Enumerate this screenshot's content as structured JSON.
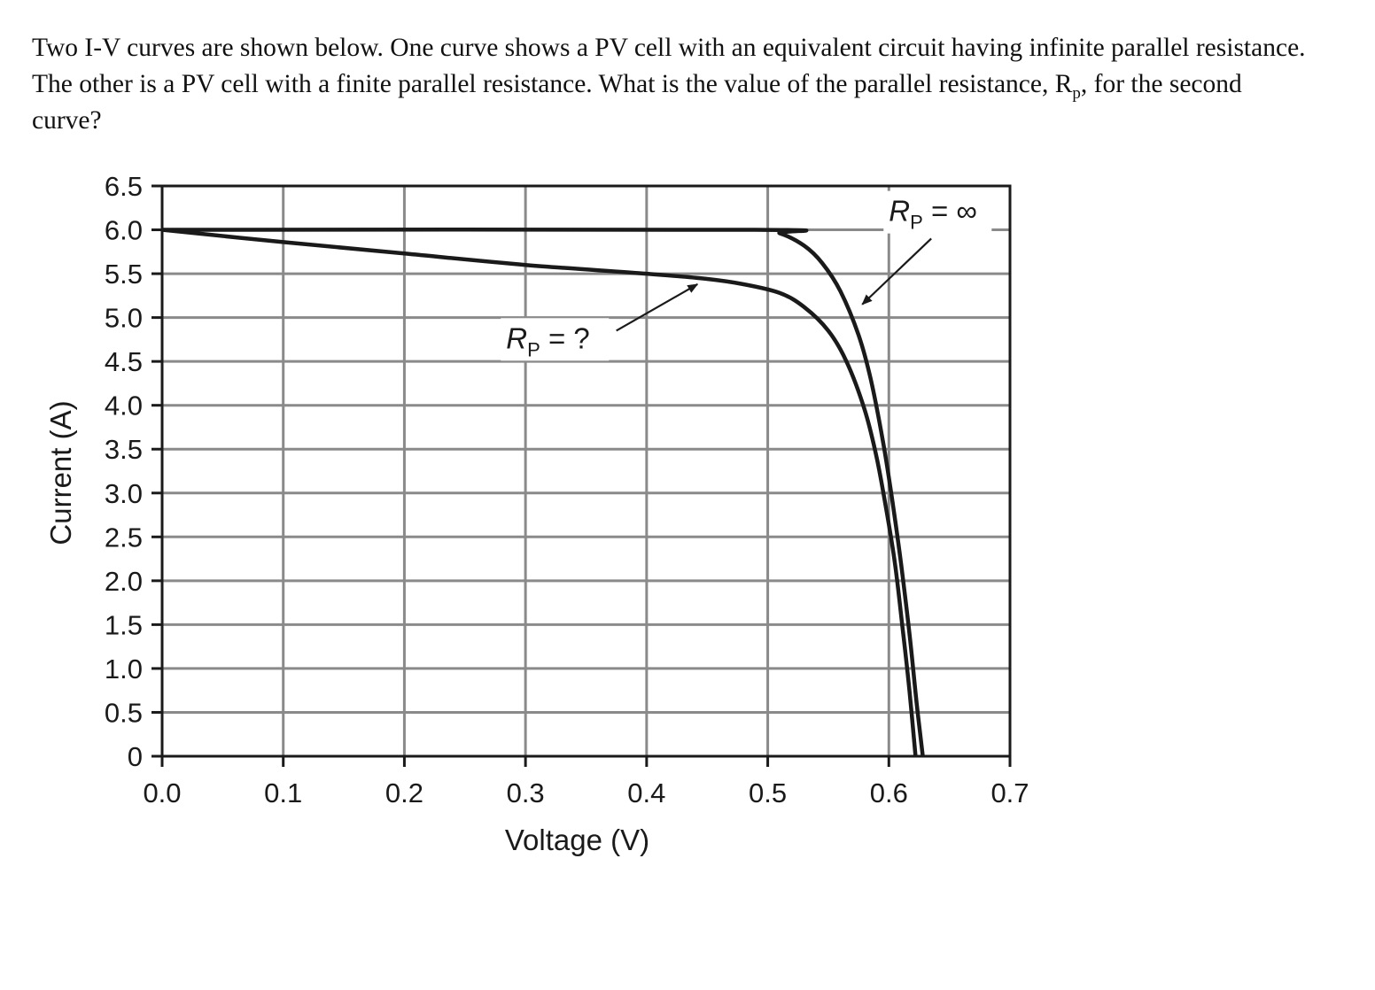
{
  "question": {
    "line_main": "Two I-V curves are shown below. One curve shows a PV cell with an equivalent circuit having infinite parallel resistance. The other is a PV cell with a finite parallel resistance. What is the value of the parallel resistance, R",
    "subscript": "p",
    "line_end": ", for the second curve?"
  },
  "chart_data": {
    "type": "line",
    "xlabel": "Voltage (V)",
    "ylabel": "Current (A)",
    "xlim": [
      0,
      0.7
    ],
    "ylim": [
      0,
      6.5
    ],
    "x_ticks": [
      "0.0",
      "0.1",
      "0.2",
      "0.3",
      "0.4",
      "0.5",
      "0.6",
      "0.7"
    ],
    "y_ticks": [
      "0",
      "0.5",
      "1.0",
      "1.5",
      "2.0",
      "2.5",
      "3.0",
      "3.5",
      "4.0",
      "4.5",
      "5.0",
      "5.5",
      "6.0",
      "6.5"
    ],
    "grid": true,
    "series": [
      {
        "name": "Rp = ∞",
        "points": [
          [
            0,
            6.0
          ],
          [
            0.49,
            6.0
          ],
          [
            0.51,
            5.96
          ],
          [
            0.53,
            5.82
          ],
          [
            0.545,
            5.62
          ],
          [
            0.56,
            5.3
          ],
          [
            0.575,
            4.8
          ],
          [
            0.585,
            4.3
          ],
          [
            0.595,
            3.6
          ],
          [
            0.603,
            2.9
          ],
          [
            0.61,
            2.2
          ],
          [
            0.617,
            1.4
          ],
          [
            0.623,
            0.6
          ],
          [
            0.628,
            0
          ]
        ]
      },
      {
        "name": "Rp = ?",
        "points": [
          [
            0,
            6.0
          ],
          [
            0.1,
            5.86
          ],
          [
            0.2,
            5.73
          ],
          [
            0.3,
            5.6
          ],
          [
            0.4,
            5.5
          ],
          [
            0.45,
            5.44
          ],
          [
            0.48,
            5.38
          ],
          [
            0.51,
            5.28
          ],
          [
            0.53,
            5.12
          ],
          [
            0.55,
            4.85
          ],
          [
            0.565,
            4.5
          ],
          [
            0.58,
            3.95
          ],
          [
            0.59,
            3.4
          ],
          [
            0.598,
            2.8
          ],
          [
            0.605,
            2.2
          ],
          [
            0.611,
            1.5
          ],
          [
            0.617,
            0.75
          ],
          [
            0.622,
            0
          ]
        ]
      }
    ],
    "annotations": [
      {
        "main": "R",
        "sub": "P",
        "rest": " = ∞",
        "text_at": [
          0.6,
          6.1
        ],
        "arrow_from": [
          0.635,
          5.9
        ],
        "arrow_to": [
          0.578,
          5.15
        ]
      },
      {
        "main": "R",
        "sub": "P",
        "rest": " = ?",
        "text_at": [
          0.284,
          4.65
        ],
        "arrow_from": [
          0.375,
          4.85
        ],
        "arrow_to": [
          0.442,
          5.38
        ]
      }
    ]
  }
}
